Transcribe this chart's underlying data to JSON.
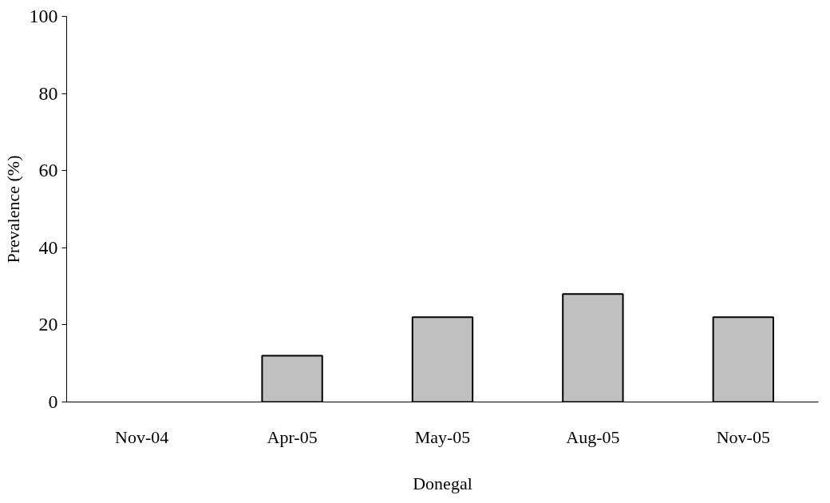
{
  "chart_data": {
    "type": "bar",
    "categories": [
      "Nov-04",
      "Apr-05",
      "May-05",
      "Aug-05",
      "Nov-05"
    ],
    "values": [
      0,
      12,
      22,
      28,
      22
    ],
    "color": "#c0c0c0",
    "xlabel": "Donegal",
    "ylabel": "Prevalence (%)",
    "ylim": [
      0,
      100
    ],
    "yticks": [
      0,
      20,
      40,
      60,
      80,
      100
    ],
    "grid": false
  }
}
